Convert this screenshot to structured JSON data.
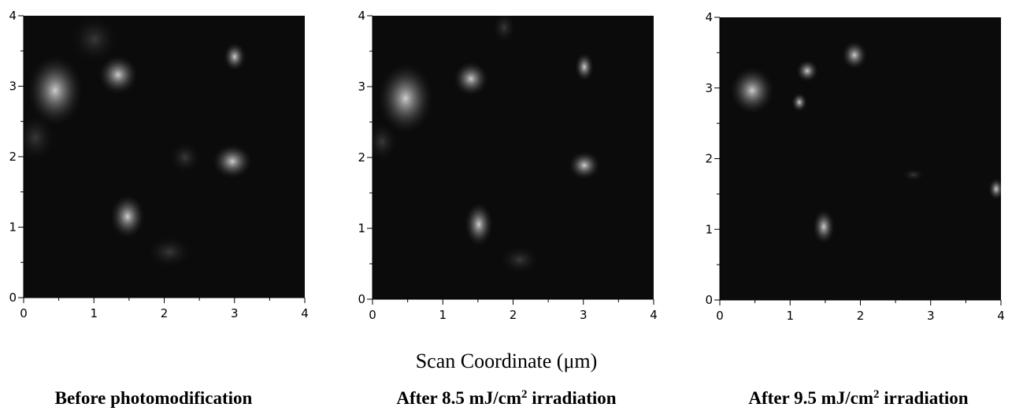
{
  "chart_data": [
    {
      "type": "image",
      "xlim": [
        0,
        4
      ],
      "ylim": [
        0,
        4
      ],
      "xticks": [
        0,
        1,
        2,
        3,
        4
      ],
      "yticks": [
        0,
        1,
        2,
        3,
        4
      ],
      "caption": [
        "Before photomodification"
      ]
    },
    {
      "type": "image",
      "xlim": [
        0,
        4
      ],
      "ylim": [
        0,
        4
      ],
      "xticks": [
        0,
        1,
        2,
        3,
        4
      ],
      "yticks": [
        0,
        1,
        2,
        3,
        4
      ],
      "xlabel": "Scan Coordinate (μm)",
      "caption": [
        "After 8.5 mJ/cm",
        "2",
        " irradiation"
      ]
    },
    {
      "type": "image",
      "xlim": [
        0,
        4
      ],
      "ylim": [
        0,
        4
      ],
      "xticks": [
        0,
        1,
        2,
        3,
        4
      ],
      "yticks": [
        0,
        1,
        2,
        3,
        4
      ],
      "caption": [
        "After 9.5 mJ/cm",
        "2",
        " irradiation"
      ]
    }
  ]
}
